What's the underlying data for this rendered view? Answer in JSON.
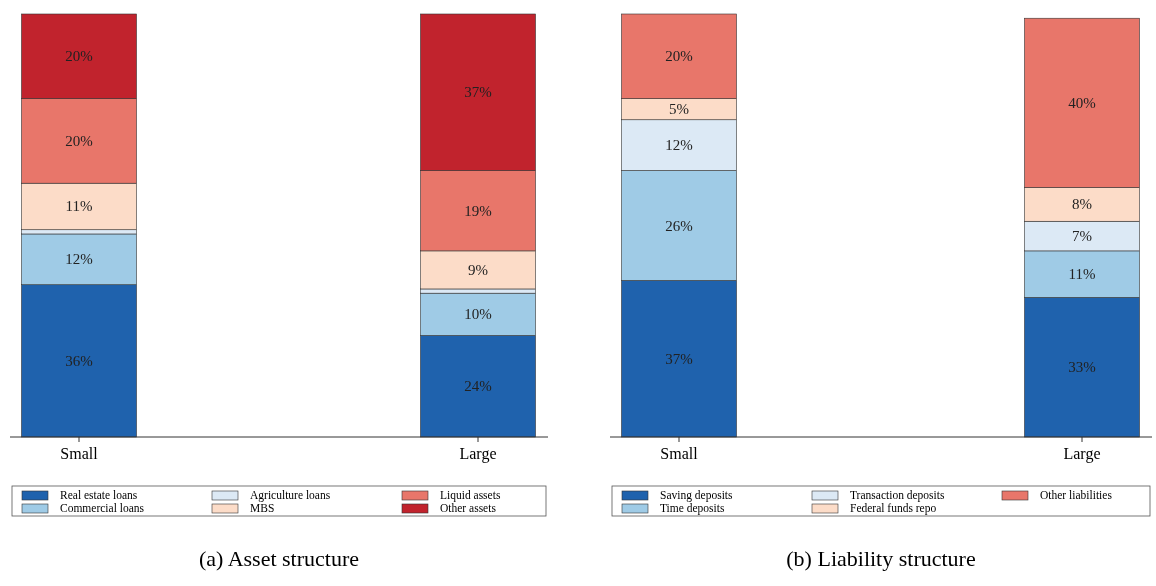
{
  "chart_data": [
    {
      "type": "bar",
      "stacked": true,
      "title": "(a) Asset structure",
      "categories": [
        "Small",
        "Large"
      ],
      "legend": "bottom",
      "tick_labels": "x",
      "series": [
        {
          "name": "Real estate loans",
          "color": "#1f62ad",
          "values": [
            36,
            24
          ],
          "value_labels": [
            "36%",
            "24%"
          ]
        },
        {
          "name": "Commercial loans",
          "color": "#9fcbe6",
          "values": [
            12,
            10
          ],
          "value_labels": [
            "12%",
            "10%"
          ]
        },
        {
          "name": "Agriculture loans",
          "color": "#dce9f5",
          "values": [
            1,
            1
          ],
          "value_labels": [
            null,
            null
          ]
        },
        {
          "name": "MBS",
          "color": "#fcdcc8",
          "values": [
            11,
            9
          ],
          "value_labels": [
            "11%",
            "9%"
          ]
        },
        {
          "name": "Liquid assets",
          "color": "#e8766a",
          "values": [
            20,
            19
          ],
          "value_labels": [
            "20%",
            "19%"
          ]
        },
        {
          "name": "Other assets",
          "color": "#c1232d",
          "values": [
            20,
            37
          ],
          "value_labels": [
            "20%",
            "37%"
          ]
        }
      ]
    },
    {
      "type": "bar",
      "stacked": true,
      "title": "(b) Liability structure",
      "categories": [
        "Small",
        "Large"
      ],
      "legend": "bottom",
      "tick_labels": "x",
      "series": [
        {
          "name": "Saving deposits",
          "color": "#1f62ad",
          "values": [
            37,
            33
          ],
          "value_labels": [
            "37%",
            "33%"
          ]
        },
        {
          "name": "Time deposits",
          "color": "#9fcbe6",
          "values": [
            26,
            11
          ],
          "value_labels": [
            "26%",
            "11%"
          ]
        },
        {
          "name": "Transaction deposits",
          "color": "#dce9f5",
          "values": [
            12,
            7
          ],
          "value_labels": [
            "12%",
            "7%"
          ]
        },
        {
          "name": "Federal funds repo",
          "color": "#fcdcc8",
          "values": [
            5,
            8
          ],
          "value_labels": [
            "5%",
            "8%"
          ]
        },
        {
          "name": "Other liabilities",
          "color": "#e8766a",
          "values": [
            20,
            40
          ],
          "value_labels": [
            "20%",
            "40%"
          ]
        }
      ]
    }
  ]
}
